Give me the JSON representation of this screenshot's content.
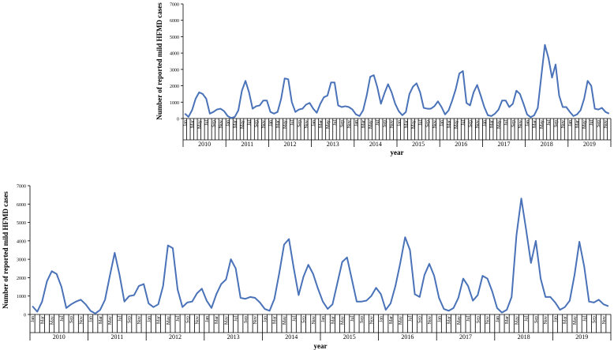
{
  "chart_data": [
    {
      "type": "line",
      "ylabel": "Number of reported mild HFMD cases",
      "xlabel": "year",
      "ylim": [
        0,
        7000
      ],
      "yticks": [
        0,
        1000,
        2000,
        3000,
        4000,
        5000,
        6000,
        7000
      ],
      "grid": false,
      "legend": "none",
      "line_color": "#4a72b8",
      "years": [
        "2010",
        "2011",
        "2012",
        "2013",
        "2014",
        "2015",
        "2016",
        "2017",
        "2018",
        "2019"
      ],
      "months": [
        "Jan",
        "Feb",
        "Mar",
        "Apr",
        "May",
        "Jun",
        "Jul",
        "Aug",
        "Sep",
        "Oct",
        "Nov",
        "Dec"
      ],
      "values": [
        300,
        100,
        500,
        1200,
        1600,
        1500,
        1200,
        300,
        400,
        550,
        600,
        450,
        150,
        30,
        100,
        500,
        1700,
        2300,
        1600,
        600,
        750,
        800,
        1100,
        1100,
        400,
        300,
        400,
        1200,
        2450,
        2400,
        1000,
        400,
        550,
        600,
        850,
        950,
        600,
        350,
        900,
        1300,
        1400,
        2200,
        2200,
        800,
        700,
        750,
        700,
        550,
        250,
        150,
        500,
        1400,
        2550,
        2650,
        1900,
        900,
        1550,
        2100,
        1600,
        900,
        450,
        200,
        400,
        1500,
        1950,
        2150,
        1600,
        650,
        600,
        600,
        750,
        1050,
        700,
        250,
        500,
        1100,
        1800,
        2750,
        2900,
        950,
        800,
        1600,
        2050,
        1400,
        700,
        200,
        150,
        300,
        550,
        1100,
        1100,
        700,
        900,
        1700,
        1500,
        900,
        250,
        80,
        200,
        650,
        2600,
        4500,
        3700,
        2500,
        3300,
        1400,
        700,
        700,
        400,
        150,
        250,
        500,
        1200,
        2300,
        2000,
        600,
        550,
        650,
        400,
        300
      ]
    },
    {
      "type": "line",
      "ylabel": "Number of reported mild HFMD cases",
      "xlabel": "year",
      "ylim": [
        0,
        7000
      ],
      "yticks": [
        0,
        1000,
        2000,
        3000,
        4000,
        5000,
        6000,
        7000
      ],
      "grid": false,
      "legend": "none",
      "line_color": "#4a72b8",
      "years": [
        "2010",
        "2011",
        "2012",
        "2013",
        "2014",
        "2015",
        "2016",
        "2017",
        "2018",
        "2019"
      ],
      "months": [
        "Jan",
        "Feb",
        "Mar",
        "Apr",
        "May",
        "Jun",
        "Jul",
        "Aug",
        "Sep",
        "Oct",
        "Nov",
        "Dec"
      ],
      "values": [
        450,
        150,
        700,
        1800,
        2350,
        2200,
        1500,
        350,
        550,
        700,
        800,
        550,
        200,
        50,
        250,
        800,
        2100,
        3350,
        2150,
        700,
        1000,
        1050,
        1550,
        1650,
        600,
        400,
        550,
        1550,
        3750,
        3600,
        1350,
        400,
        650,
        700,
        1150,
        1400,
        750,
        350,
        1100,
        1650,
        1900,
        3000,
        2500,
        900,
        850,
        950,
        900,
        650,
        300,
        200,
        850,
        2250,
        3800,
        4100,
        2500,
        1050,
        2050,
        2700,
        2200,
        1400,
        700,
        300,
        550,
        1700,
        2850,
        3100,
        1900,
        700,
        700,
        750,
        1000,
        1450,
        1100,
        250,
        600,
        1550,
        2800,
        4200,
        3500,
        1100,
        950,
        2150,
        2750,
        2100,
        900,
        300,
        200,
        350,
        900,
        1950,
        1550,
        750,
        1050,
        2100,
        1950,
        1250,
        350,
        100,
        250,
        950,
        4300,
        6300,
        4600,
        2800,
        4000,
        1950,
        950,
        950,
        650,
        250,
        400,
        750,
        2150,
        3950,
        2600,
        700,
        650,
        800,
        550,
        450
      ]
    }
  ]
}
